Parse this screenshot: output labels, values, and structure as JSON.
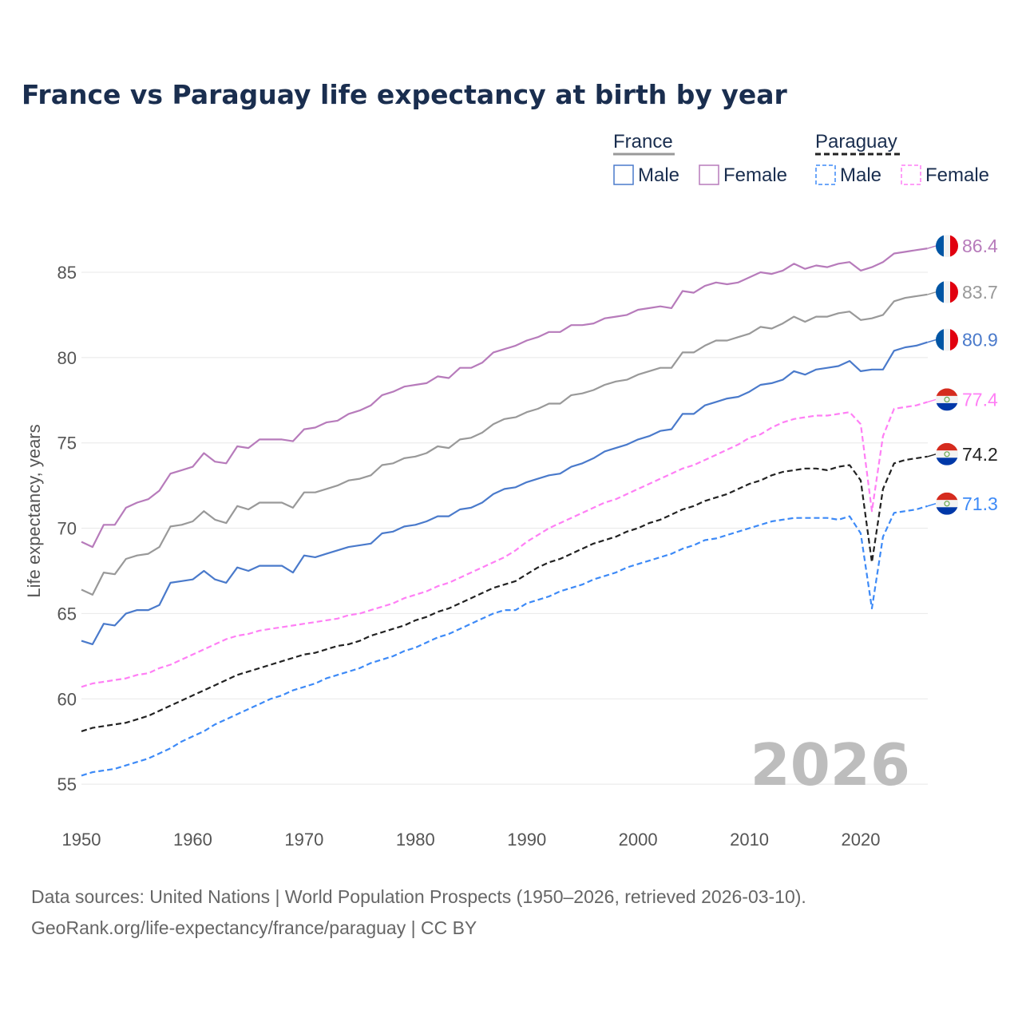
{
  "chart_data": {
    "type": "line",
    "title": "France vs Paraguay life expectancy at birth by year",
    "xlabel": "",
    "ylabel": "Life expectancy, years",
    "xlim": [
      1950,
      2026
    ],
    "ylim": [
      53,
      87.5
    ],
    "x_ticks": [
      "1950",
      "1960",
      "1970",
      "1980",
      "1990",
      "2000",
      "2010",
      "2020"
    ],
    "y_ticks": [
      "55",
      "60",
      "65",
      "70",
      "75",
      "80",
      "85"
    ],
    "grid": true,
    "legend_placement": "top-right",
    "legend_groups": [
      {
        "name": "France",
        "color": "#999999",
        "dash": false,
        "items": [
          "Male",
          "Female"
        ]
      },
      {
        "name": "Paraguay",
        "color": "#222222",
        "dash": true,
        "items": [
          "Male",
          "Female"
        ]
      }
    ],
    "watermark_year": "2026",
    "series": [
      {
        "name": "France Female",
        "country": "France",
        "color": "#b77bbb",
        "dash": false,
        "end_label": "86.4",
        "values": [
          69.2,
          68.9,
          70.2,
          70.2,
          71.2,
          71.5,
          71.7,
          72.2,
          73.2,
          73.4,
          73.6,
          74.4,
          73.9,
          73.8,
          74.8,
          74.7,
          75.2,
          75.2,
          75.2,
          75.1,
          75.8,
          75.9,
          76.2,
          76.3,
          76.7,
          76.9,
          77.2,
          77.8,
          78.0,
          78.3,
          78.4,
          78.5,
          78.9,
          78.8,
          79.4,
          79.4,
          79.7,
          80.3,
          80.5,
          80.7,
          81.0,
          81.2,
          81.5,
          81.5,
          81.9,
          81.9,
          82.0,
          82.3,
          82.4,
          82.5,
          82.8,
          82.9,
          83.0,
          82.9,
          83.9,
          83.8,
          84.2,
          84.4,
          84.3,
          84.4,
          84.7,
          85.0,
          84.9,
          85.1,
          85.5,
          85.2,
          85.4,
          85.3,
          85.5,
          85.6,
          85.1,
          85.3,
          85.6,
          86.1,
          86.2,
          86.3,
          86.4
        ]
      },
      {
        "name": "France Total",
        "country": "France",
        "color": "#999999",
        "dash": false,
        "end_label": "83.7",
        "values": [
          66.4,
          66.1,
          67.4,
          67.3,
          68.2,
          68.4,
          68.5,
          68.9,
          70.1,
          70.2,
          70.4,
          71.0,
          70.5,
          70.3,
          71.3,
          71.1,
          71.5,
          71.5,
          71.5,
          71.2,
          72.1,
          72.1,
          72.3,
          72.5,
          72.8,
          72.9,
          73.1,
          73.7,
          73.8,
          74.1,
          74.2,
          74.4,
          74.8,
          74.7,
          75.2,
          75.3,
          75.6,
          76.1,
          76.4,
          76.5,
          76.8,
          77.0,
          77.3,
          77.3,
          77.8,
          77.9,
          78.1,
          78.4,
          78.6,
          78.7,
          79.0,
          79.2,
          79.4,
          79.4,
          80.3,
          80.3,
          80.7,
          81.0,
          81.0,
          81.2,
          81.4,
          81.8,
          81.7,
          82.0,
          82.4,
          82.1,
          82.4,
          82.4,
          82.6,
          82.7,
          82.2,
          82.3,
          82.5,
          83.3,
          83.5,
          83.6,
          83.7
        ]
      },
      {
        "name": "France Male",
        "country": "France",
        "color": "#4a7acb",
        "dash": false,
        "end_label": "80.9",
        "values": [
          63.4,
          63.2,
          64.4,
          64.3,
          65.0,
          65.2,
          65.2,
          65.5,
          66.8,
          66.9,
          67.0,
          67.5,
          67.0,
          66.8,
          67.7,
          67.5,
          67.8,
          67.8,
          67.8,
          67.4,
          68.4,
          68.3,
          68.5,
          68.7,
          68.9,
          69.0,
          69.1,
          69.7,
          69.8,
          70.1,
          70.2,
          70.4,
          70.7,
          70.7,
          71.1,
          71.2,
          71.5,
          72.0,
          72.3,
          72.4,
          72.7,
          72.9,
          73.1,
          73.2,
          73.6,
          73.8,
          74.1,
          74.5,
          74.7,
          74.9,
          75.2,
          75.4,
          75.7,
          75.8,
          76.7,
          76.7,
          77.2,
          77.4,
          77.6,
          77.7,
          78.0,
          78.4,
          78.5,
          78.7,
          79.2,
          79.0,
          79.3,
          79.4,
          79.5,
          79.8,
          79.2,
          79.3,
          79.3,
          80.4,
          80.6,
          80.7,
          80.9
        ]
      },
      {
        "name": "Paraguay Female",
        "country": "Paraguay",
        "color": "#ff7ff5",
        "dash": true,
        "end_label": "77.4",
        "values": [
          60.7,
          60.9,
          61.0,
          61.1,
          61.2,
          61.4,
          61.5,
          61.8,
          62.0,
          62.3,
          62.6,
          62.9,
          63.2,
          63.5,
          63.7,
          63.8,
          64.0,
          64.1,
          64.2,
          64.3,
          64.4,
          64.5,
          64.6,
          64.7,
          64.9,
          65.0,
          65.2,
          65.4,
          65.6,
          65.9,
          66.1,
          66.3,
          66.6,
          66.8,
          67.1,
          67.4,
          67.7,
          68.0,
          68.3,
          68.7,
          69.2,
          69.6,
          70.0,
          70.3,
          70.6,
          70.9,
          71.2,
          71.5,
          71.7,
          72.0,
          72.3,
          72.6,
          72.9,
          73.2,
          73.5,
          73.7,
          74.0,
          74.3,
          74.6,
          74.9,
          75.3,
          75.5,
          75.9,
          76.2,
          76.4,
          76.5,
          76.6,
          76.6,
          76.7,
          76.8,
          76.1,
          71.0,
          75.4,
          77.0,
          77.1,
          77.2,
          77.4
        ]
      },
      {
        "name": "Paraguay Total",
        "country": "Paraguay",
        "color": "#222222",
        "dash": true,
        "end_label": "74.2",
        "values": [
          58.1,
          58.3,
          58.4,
          58.5,
          58.6,
          58.8,
          59.0,
          59.3,
          59.6,
          59.9,
          60.2,
          60.5,
          60.8,
          61.1,
          61.4,
          61.6,
          61.8,
          62.0,
          62.2,
          62.4,
          62.6,
          62.7,
          62.9,
          63.1,
          63.2,
          63.4,
          63.7,
          63.9,
          64.1,
          64.3,
          64.6,
          64.8,
          65.1,
          65.3,
          65.6,
          65.9,
          66.2,
          66.5,
          66.7,
          66.9,
          67.3,
          67.7,
          68.0,
          68.2,
          68.5,
          68.8,
          69.1,
          69.3,
          69.5,
          69.8,
          70.0,
          70.3,
          70.5,
          70.8,
          71.1,
          71.3,
          71.6,
          71.8,
          72.0,
          72.3,
          72.6,
          72.8,
          73.1,
          73.3,
          73.4,
          73.5,
          73.5,
          73.4,
          73.6,
          73.7,
          72.8,
          68.0,
          72.3,
          73.8,
          74.0,
          74.1,
          74.2
        ]
      },
      {
        "name": "Paraguay Male",
        "country": "Paraguay",
        "color": "#3d8af7",
        "dash": true,
        "end_label": "71.3",
        "values": [
          55.5,
          55.7,
          55.8,
          55.9,
          56.1,
          56.3,
          56.5,
          56.8,
          57.1,
          57.5,
          57.8,
          58.1,
          58.5,
          58.8,
          59.1,
          59.4,
          59.7,
          60.0,
          60.2,
          60.5,
          60.7,
          60.9,
          61.2,
          61.4,
          61.6,
          61.8,
          62.1,
          62.3,
          62.5,
          62.8,
          63.0,
          63.3,
          63.6,
          63.8,
          64.1,
          64.4,
          64.7,
          65.0,
          65.2,
          65.2,
          65.6,
          65.8,
          66.0,
          66.3,
          66.5,
          66.7,
          67.0,
          67.2,
          67.4,
          67.7,
          67.9,
          68.1,
          68.3,
          68.5,
          68.8,
          69.0,
          69.3,
          69.4,
          69.6,
          69.8,
          70.0,
          70.2,
          70.4,
          70.5,
          70.6,
          70.6,
          70.6,
          70.6,
          70.5,
          70.7,
          69.7,
          65.3,
          69.5,
          70.9,
          71.0,
          71.1,
          71.3
        ]
      }
    ]
  },
  "legend": {
    "france": "France",
    "paraguay": "Paraguay",
    "male": "Male",
    "female": "Female",
    "france_male_color": "#4a7acb",
    "france_female_color": "#b77bbb",
    "paraguay_male_color": "#3d8af7",
    "paraguay_female_color": "#ff7ff5"
  },
  "source": {
    "line1": "Data sources: United Nations | World Population Prospects (1950–2026, retrieved 2026-03-10).",
    "line2": "GeoRank.org/life-expectancy/france/paraguay | CC BY"
  }
}
